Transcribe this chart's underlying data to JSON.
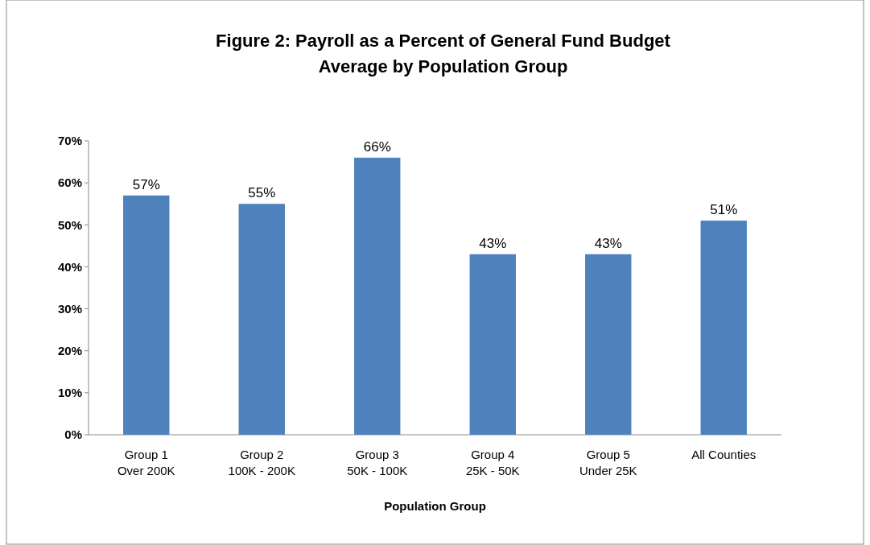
{
  "chart_data": {
    "type": "bar",
    "title": "Figure 2: Payroll as a Percent of General Fund Budget",
    "subtitle": "Average by Population Group",
    "xlabel": "Population Group",
    "categories": [
      "Group 1\nOver 200K",
      "Group 2\n100K - 200K",
      "Group 3\n50K - 100K",
      "Group 4\n25K - 50K",
      "Group 5\nUnder 25K",
      "All Counties"
    ],
    "values": [
      57,
      55,
      66,
      43,
      43,
      51
    ],
    "value_labels": [
      "57%",
      "55%",
      "66%",
      "43%",
      "43%",
      "51%"
    ],
    "color": "#4f81bd",
    "ylim": [
      0,
      70
    ],
    "yticks": [
      {
        "value": 0,
        "label": "0%"
      },
      {
        "value": 10,
        "label": "10%"
      },
      {
        "value": 20,
        "label": "20%"
      },
      {
        "value": 30,
        "label": "30%"
      },
      {
        "value": 40,
        "label": "40%"
      },
      {
        "value": 50,
        "label": "50%"
      },
      {
        "value": 60,
        "label": "60%"
      },
      {
        "value": 70,
        "label": "70%"
      }
    ],
    "grid": false
  }
}
